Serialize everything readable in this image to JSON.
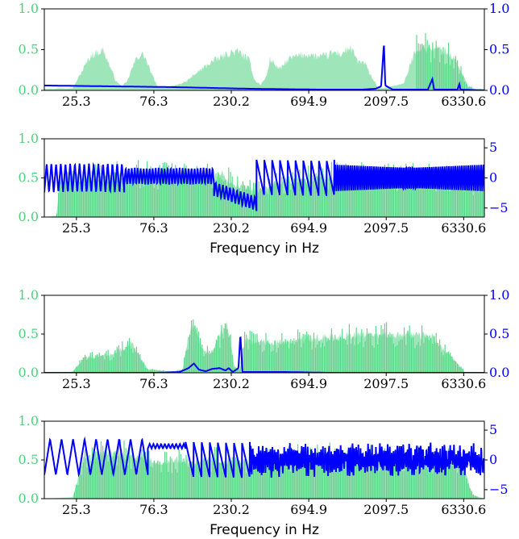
{
  "chart_data": [
    {
      "type": "area",
      "x_scale": "log",
      "x_ticks": [
        "25.3",
        "76.3",
        "230.2",
        "694.9",
        "2097.5",
        "6330.6"
      ],
      "x_tick_values": [
        25.3,
        76.3,
        230.2,
        694.9,
        2097.5,
        6330.6
      ],
      "xlim": [
        16,
        8500
      ],
      "xlabel": "",
      "y_left": {
        "ticks": [
          "0.0",
          "0.5",
          "1.0"
        ],
        "tick_values": [
          0,
          0.5,
          1.0
        ],
        "ylim": [
          0,
          1
        ]
      },
      "y_right": {
        "ticks": [
          "0.0",
          "0.5",
          "1.0"
        ],
        "tick_values": [
          0,
          0.5,
          1.0
        ],
        "ylim": [
          0,
          1
        ],
        "color": "#0000ff"
      },
      "series": [
        {
          "kind": "magnitude-area",
          "color": "#4fd17f",
          "axis": "left",
          "shape": [
            [
              16,
              0.02
            ],
            [
              18,
              0.02
            ],
            [
              20,
              0.03
            ],
            [
              24,
              0.03
            ],
            [
              28,
              0.32
            ],
            [
              31,
              0.5
            ],
            [
              34,
              0.55
            ],
            [
              37,
              0.58
            ],
            [
              40,
              0.4
            ],
            [
              44,
              0.15
            ],
            [
              48,
              0.06
            ],
            [
              52,
              0.12
            ],
            [
              56,
              0.32
            ],
            [
              60,
              0.48
            ],
            [
              66,
              0.52
            ],
            [
              72,
              0.3
            ],
            [
              80,
              0.06
            ],
            [
              96,
              0.05
            ],
            [
              120,
              0.12
            ],
            [
              135,
              0.22
            ],
            [
              150,
              0.3
            ],
            [
              170,
              0.4
            ],
            [
              200,
              0.48
            ],
            [
              230,
              0.55
            ],
            [
              260,
              0.55
            ],
            [
              300,
              0.42
            ],
            [
              320,
              0.15
            ],
            [
              350,
              0.08
            ],
            [
              380,
              0.2
            ],
            [
              400,
              0.45
            ],
            [
              460,
              0.3
            ],
            [
              520,
              0.45
            ],
            [
              600,
              0.5
            ],
            [
              700,
              0.52
            ],
            [
              800,
              0.48
            ],
            [
              900,
              0.5
            ],
            [
              1000,
              0.55
            ],
            [
              1100,
              0.52
            ],
            [
              1250,
              0.62
            ],
            [
              1400,
              0.42
            ],
            [
              1550,
              0.38
            ],
            [
              1700,
              0.2
            ],
            [
              1850,
              0.05
            ],
            [
              2000,
              0.03
            ],
            [
              2700,
              0.1
            ],
            [
              3200,
              0.6
            ],
            [
              4000,
              0.62
            ],
            [
              4800,
              0.58
            ],
            [
              5600,
              0.45
            ],
            [
              6000,
              0.3
            ],
            [
              6800,
              0.05
            ],
            [
              7500,
              0.02
            ],
            [
              8500,
              0.02
            ]
          ],
          "spiky_above": 3200
        },
        {
          "kind": "line",
          "color": "#0000ff",
          "axis": "right",
          "shape": [
            [
              16,
              0.06
            ],
            [
              40,
              0.05
            ],
            [
              100,
              0.04
            ],
            [
              300,
              0.02
            ],
            [
              800,
              0.01
            ],
            [
              1500,
              0.01
            ],
            [
              1800,
              0.02
            ],
            [
              1950,
              0.05
            ],
            [
              2030,
              0.58
            ],
            [
              2070,
              0.06
            ],
            [
              2300,
              0.01
            ],
            [
              3800,
              0.01
            ],
            [
              4050,
              0.14
            ],
            [
              4150,
              0.01
            ],
            [
              5800,
              0.01
            ],
            [
              5950,
              0.08
            ],
            [
              6050,
              0.01
            ],
            [
              8500,
              0.0
            ]
          ]
        }
      ]
    },
    {
      "type": "area",
      "x_scale": "log",
      "x_ticks": [
        "25.3",
        "76.3",
        "230.2",
        "694.9",
        "2097.5",
        "6330.6"
      ],
      "x_tick_values": [
        25.3,
        76.3,
        230.2,
        694.9,
        2097.5,
        6330.6
      ],
      "xlim": [
        16,
        8500
      ],
      "xlabel": "Frequency in Hz",
      "y_left": {
        "ticks": [
          "0.0",
          "0.5",
          "1.0"
        ],
        "tick_values": [
          0,
          0.5,
          1.0
        ],
        "ylim": [
          0,
          1
        ]
      },
      "y_right": {
        "ticks": [
          "−5",
          "0",
          "5"
        ],
        "tick_values": [
          -5,
          0,
          5
        ],
        "ylim": [
          -6.5,
          6.5
        ],
        "color": "#0000ff"
      },
      "series": [
        {
          "kind": "magnitude-area",
          "color": "#4fd17f",
          "axis": "left",
          "shape": [
            [
              16,
              0.0
            ],
            [
              19,
              0.02
            ],
            [
              20,
              0.55
            ],
            [
              30,
              0.6
            ],
            [
              60,
              0.65
            ],
            [
              100,
              0.62
            ],
            [
              160,
              0.6
            ],
            [
              200,
              0.65
            ],
            [
              240,
              0.5
            ],
            [
              280,
              0.45
            ],
            [
              330,
              0.4
            ],
            [
              500,
              0.55
            ],
            [
              1000,
              0.62
            ],
            [
              2000,
              0.6
            ],
            [
              4000,
              0.6
            ],
            [
              6000,
              0.55
            ],
            [
              7500,
              0.45
            ],
            [
              8500,
              0.4
            ]
          ],
          "spiky_above": 0
        },
        {
          "kind": "phase-line",
          "color": "#0000ff",
          "axis": "right",
          "segments": [
            {
              "x_from": 16,
              "x_to": 50,
              "center": 0,
              "amp": 2.4,
              "cycles": 17
            },
            {
              "x_from": 50,
              "x_to": 180,
              "center": 0.3,
              "amp": 1.4,
              "cycles": 30
            },
            {
              "x_from": 180,
              "x_to": 330,
              "center": -1.8,
              "drift": 2.5,
              "amp": 1.2,
              "cycles": 12
            },
            {
              "x_from": 330,
              "x_to": 1000,
              "center": 0,
              "amp": 3.0,
              "cycles": 10,
              "sawtooth": true
            },
            {
              "x_from": 1000,
              "x_to": 8500,
              "center": 0,
              "amp": 2.2,
              "cycles": 70
            }
          ]
        }
      ]
    },
    {
      "type": "area",
      "x_scale": "log",
      "x_ticks": [
        "25.3",
        "76.3",
        "230.2",
        "694.9",
        "2097.5",
        "6330.6"
      ],
      "x_tick_values": [
        25.3,
        76.3,
        230.2,
        694.9,
        2097.5,
        6330.6
      ],
      "xlim": [
        16,
        8500
      ],
      "xlabel": "",
      "y_left": {
        "ticks": [
          "0.0",
          "0.5",
          "1.0"
        ],
        "tick_values": [
          0,
          0.5,
          1.0
        ],
        "ylim": [
          0,
          1
        ]
      },
      "y_right": {
        "ticks": [
          "0.0",
          "0.5",
          "1.0"
        ],
        "tick_values": [
          0,
          0.5,
          1.0
        ],
        "ylim": [
          0,
          1
        ],
        "color": "#0000ff"
      },
      "series": [
        {
          "kind": "magnitude-area",
          "color": "#4fd17f",
          "axis": "left",
          "shape": [
            [
              16,
              0.0
            ],
            [
              22,
              0.0
            ],
            [
              24,
              0.02
            ],
            [
              28,
              0.22
            ],
            [
              40,
              0.28
            ],
            [
              48,
              0.35
            ],
            [
              56,
              0.45
            ],
            [
              60,
              0.3
            ],
            [
              70,
              0.05
            ],
            [
              100,
              0.02
            ],
            [
              115,
              0.05
            ],
            [
              120,
              0.35
            ],
            [
              130,
              0.7
            ],
            [
              140,
              0.62
            ],
            [
              150,
              0.4
            ],
            [
              165,
              0.3
            ],
            [
              180,
              0.35
            ],
            [
              200,
              0.62
            ],
            [
              215,
              0.72
            ],
            [
              225,
              0.6
            ],
            [
              240,
              0.1
            ],
            [
              260,
              0.05
            ],
            [
              280,
              0.5
            ],
            [
              300,
              0.48
            ],
            [
              400,
              0.45
            ],
            [
              600,
              0.5
            ],
            [
              1000,
              0.55
            ],
            [
              1500,
              0.58
            ],
            [
              2000,
              0.58
            ],
            [
              3000,
              0.58
            ],
            [
              4000,
              0.55
            ],
            [
              5000,
              0.3
            ],
            [
              6000,
              0.1
            ],
            [
              6500,
              0.0
            ],
            [
              8500,
              0.0
            ]
          ],
          "spiky_above": 0
        },
        {
          "kind": "line",
          "color": "#0000ff",
          "axis": "right",
          "shape": [
            [
              16,
              0.0
            ],
            [
              80,
              0.0
            ],
            [
              110,
              0.01
            ],
            [
              125,
              0.06
            ],
            [
              135,
              0.12
            ],
            [
              145,
              0.04
            ],
            [
              160,
              0.02
            ],
            [
              175,
              0.05
            ],
            [
              195,
              0.06
            ],
            [
              212,
              0.03
            ],
            [
              222,
              0.06
            ],
            [
              235,
              0.01
            ],
            [
              255,
              0.06
            ],
            [
              262,
              0.5
            ],
            [
              270,
              0.01
            ],
            [
              320,
              0.01
            ],
            [
              500,
              0.01
            ],
            [
              900,
              0.0
            ],
            [
              2000,
              0.0
            ],
            [
              8500,
              0.0
            ]
          ]
        }
      ]
    },
    {
      "type": "area",
      "x_scale": "log",
      "x_ticks": [
        "25.3",
        "76.3",
        "230.2",
        "694.9",
        "2097.5",
        "6330.6"
      ],
      "x_tick_values": [
        25.3,
        76.3,
        230.2,
        694.9,
        2097.5,
        6330.6
      ],
      "xlim": [
        16,
        8500
      ],
      "xlabel": "Frequency in Hz",
      "y_left": {
        "ticks": [
          "0.0",
          "0.5",
          "1.0"
        ],
        "tick_values": [
          0,
          0.5,
          1.0
        ],
        "ylim": [
          0,
          1
        ]
      },
      "y_right": {
        "ticks": [
          "−5",
          "0",
          "5"
        ],
        "tick_values": [
          -5,
          0,
          5
        ],
        "ylim": [
          -6.5,
          6.5
        ],
        "color": "#0000ff"
      },
      "series": [
        {
          "kind": "magnitude-area",
          "color": "#4fd17f",
          "axis": "left",
          "shape": [
            [
              16,
              0.0
            ],
            [
              24,
              0.02
            ],
            [
              28,
              0.6
            ],
            [
              40,
              0.7
            ],
            [
              60,
              0.65
            ],
            [
              80,
              0.55
            ],
            [
              110,
              0.6
            ],
            [
              140,
              0.55
            ],
            [
              180,
              0.6
            ],
            [
              250,
              0.55
            ],
            [
              400,
              0.6
            ],
            [
              800,
              0.65
            ],
            [
              1500,
              0.62
            ],
            [
              3000,
              0.6
            ],
            [
              5000,
              0.58
            ],
            [
              6500,
              0.4
            ],
            [
              7200,
              0.05
            ],
            [
              8500,
              0.0
            ]
          ],
          "spiky_above": 0
        },
        {
          "kind": "phase-line",
          "color": "#0000ff",
          "axis": "right",
          "segments": [
            {
              "x_from": 16,
              "x_to": 70,
              "center": 0.5,
              "amp": 3.0,
              "cycles": 9
            },
            {
              "x_from": 70,
              "x_to": 120,
              "center": 2.3,
              "amp": 0.4,
              "cycles": 10
            },
            {
              "x_from": 120,
              "x_to": 300,
              "center": 0,
              "amp": 3.0,
              "cycles": 8,
              "sawtooth": true
            },
            {
              "x_from": 300,
              "x_to": 8500,
              "center": 0,
              "amp": 2.5,
              "cycles": 120,
              "noisy": true
            }
          ]
        }
      ]
    }
  ]
}
